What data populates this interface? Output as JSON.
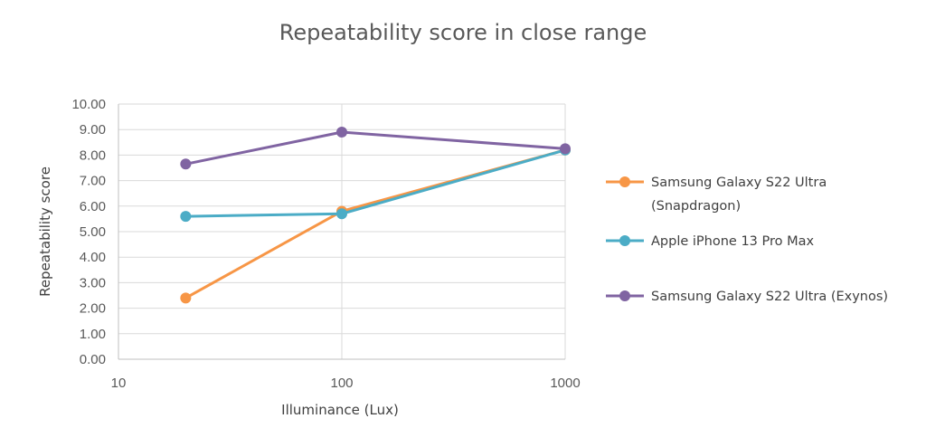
{
  "chart_data": {
    "type": "line",
    "title": "Repeatability score in close range",
    "xlabel": "Illuminance (Lux)",
    "ylabel": "Repeatability score",
    "xscale": "log",
    "xlim": [
      10,
      1000
    ],
    "ylim": [
      0,
      10
    ],
    "x_ticks": [
      "10",
      "100",
      "1000"
    ],
    "y_ticks": [
      "0.00",
      "1.00",
      "2.00",
      "3.00",
      "4.00",
      "5.00",
      "6.00",
      "7.00",
      "8.00",
      "9.00",
      "10.00"
    ],
    "grid": true,
    "legend_position": "right",
    "x": [
      20,
      100,
      1000
    ],
    "series": [
      {
        "name": "Samsung Galaxy S22 Ultra (Snapdragon)",
        "legend_lines": [
          "Samsung Galaxy S22 Ultra",
          "(Snapdragon)"
        ],
        "color": "#F79646",
        "values": [
          2.4,
          5.8,
          8.2
        ]
      },
      {
        "name": "Apple iPhone 13 Pro Max",
        "legend_lines": [
          "Apple iPhone 13 Pro Max"
        ],
        "color": "#4BACC6",
        "values": [
          5.6,
          5.7,
          8.2
        ]
      },
      {
        "name": "Samsung Galaxy S22 Ultra (Exynos)",
        "legend_lines": [
          "Samsung Galaxy S22 Ultra (Exynos)"
        ],
        "color": "#8064A2",
        "values": [
          7.65,
          8.9,
          8.25
        ]
      }
    ]
  }
}
